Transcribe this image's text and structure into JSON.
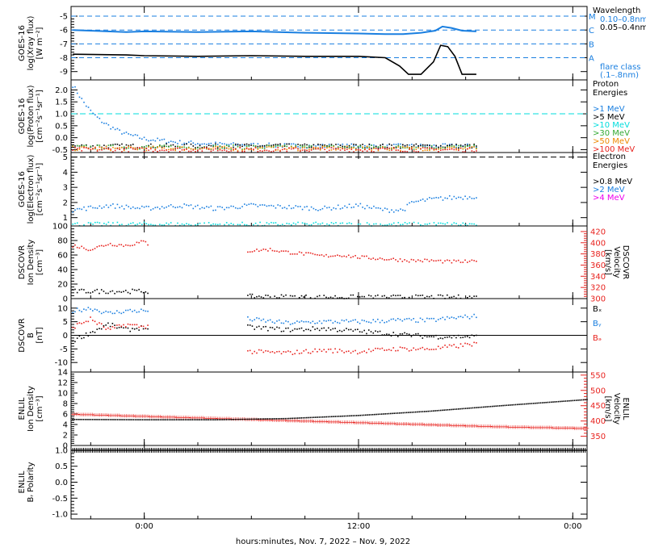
{
  "colors": {
    "black": "#000000",
    "blue": "#1a7fe0",
    "cyan": "#00dddd",
    "green": "#33aa33",
    "orange": "#ee8800",
    "red": "#e8231f",
    "magenta": "#ee00ee",
    "dash_blue": "#1a7fe0"
  },
  "xaxis": {
    "ticks": [
      "0:00",
      "12:00",
      "0:00"
    ],
    "label": "hours:minutes, Nov.  7, 2022 – Nov.  9, 2022",
    "range_hours": [
      -4.1,
      24.8
    ],
    "tick_hours": [
      0,
      12,
      24
    ],
    "data_end_hours": 18.6
  },
  "chart_data": [
    {
      "id": "xray",
      "type": "line",
      "ylabel": [
        "GOES-16",
        "log(Xray flux)",
        "[W m⁻²]"
      ],
      "ylim": [
        -9.6,
        -4.3
      ],
      "yticks": [
        "-5",
        "-6",
        "-7",
        "-8",
        "-9"
      ],
      "ytick_values": [
        -5,
        -6,
        -7,
        -8,
        -9
      ],
      "flare_levels": [
        {
          "label": "M",
          "value": -5
        },
        {
          "label": "C",
          "value": -6
        },
        {
          "label": "B",
          "value": -7
        },
        {
          "label": "A",
          "value": -8
        }
      ],
      "legend": {
        "title": "Wavelength",
        "entries": [
          {
            "label": "0.10–0.8nm",
            "color": "blue"
          },
          {
            "label": "0.05–0.4nm",
            "color": "black"
          }
        ],
        "note": [
          "flare class",
          "(.1–.8nm)"
        ]
      },
      "series": [
        {
          "color": "blue",
          "x": [
            -4,
            -1,
            0,
            3,
            6,
            9,
            12,
            13.5,
            14.5,
            15.5,
            16.3,
            16.7,
            17.2,
            17.8,
            18.6
          ],
          "y": [
            -6.0,
            -6.15,
            -6.1,
            -6.15,
            -6.1,
            -6.2,
            -6.25,
            -6.3,
            -6.3,
            -6.2,
            -6.05,
            -5.75,
            -5.85,
            -6.05,
            -6.1
          ]
        },
        {
          "color": "black",
          "x": [
            -4,
            -1,
            0,
            3,
            6,
            9,
            12,
            13.5,
            14.3,
            14.8,
            15.5,
            16.2,
            16.6,
            17.0,
            17.4,
            17.8,
            18.6
          ],
          "y": [
            -7.75,
            -7.8,
            -7.85,
            -7.9,
            -7.85,
            -7.9,
            -7.9,
            -8.0,
            -8.6,
            -9.2,
            -9.2,
            -8.3,
            -7.1,
            -7.2,
            -7.9,
            -9.2,
            -9.2
          ]
        }
      ]
    },
    {
      "id": "proton",
      "type": "scatter",
      "ylabel": [
        "GOES-16",
        "log(Proton flux)",
        "[cm⁻²s⁻¹sr⁻¹]"
      ],
      "ylim": [
        -0.62,
        2.42
      ],
      "yticks": [
        "2.0",
        "1.5",
        "1.0",
        "0.5",
        "0.0",
        "-0.5"
      ],
      "ytick_values": [
        2.0,
        1.5,
        1.0,
        0.5,
        0.0,
        -0.5
      ],
      "threshold": 1.0,
      "legend": {
        "title": [
          "Proton",
          "Energies"
        ],
        "entries": [
          {
            "label": ">1 MeV",
            "color": "blue"
          },
          {
            "label": ">5 MeV",
            "color": "black"
          },
          {
            "label": ">10 MeV",
            "color": "cyan"
          },
          {
            "label": ">30 MeV",
            "color": "green"
          },
          {
            "label": ">50 MeV",
            "color": "orange"
          },
          {
            "label": ">100 MeV",
            "color": "red"
          }
        ]
      },
      "series": [
        {
          "color": "blue",
          "x": [
            -4,
            -3.5,
            -3,
            -2.5,
            -2,
            -1.5,
            -1,
            0,
            2,
            5,
            10,
            15,
            18.6
          ],
          "y": [
            2.2,
            1.6,
            1.1,
            0.75,
            0.5,
            0.3,
            0.15,
            -0.05,
            -0.2,
            -0.3,
            -0.35,
            -0.35,
            -0.35
          ]
        },
        {
          "color": "black",
          "x": [
            -4,
            18.6
          ],
          "y": [
            -0.35,
            -0.35
          ]
        },
        {
          "color": "green",
          "x": [
            -4,
            18.6
          ],
          "y": [
            -0.4,
            -0.4
          ]
        },
        {
          "color": "orange",
          "x": [
            -4,
            18.6
          ],
          "y": [
            -0.45,
            -0.45
          ]
        },
        {
          "color": "red",
          "x": [
            -4,
            18.6
          ],
          "y": [
            -0.5,
            -0.5
          ]
        }
      ]
    },
    {
      "id": "electron",
      "type": "scatter",
      "ylabel": [
        "GOES-16",
        "log(Electron flux)",
        "[cm⁻²s⁻¹sr⁻¹]"
      ],
      "ylim": [
        0.45,
        5.3
      ],
      "yticks": [
        "5",
        "4",
        "3",
        "2",
        "1"
      ],
      "ytick_values": [
        5,
        4,
        3,
        2,
        1
      ],
      "threshold": 5.0,
      "legend": {
        "title": [
          "Electron",
          "Energies"
        ],
        "entries": [
          {
            "label": ">0.8 MeV",
            "color": "black"
          },
          {
            "label": ">2 MeV",
            "color": "blue"
          },
          {
            "label": ">4 MeV",
            "color": "magenta"
          }
        ]
      },
      "series": [
        {
          "color": "blue",
          "x": [
            -4,
            -2,
            0,
            2,
            4,
            6,
            8,
            10,
            12,
            13.5,
            14.5,
            15,
            16,
            17,
            18.6
          ],
          "y": [
            1.5,
            1.8,
            1.6,
            1.8,
            1.6,
            1.8,
            1.7,
            1.6,
            1.8,
            1.5,
            1.5,
            2.0,
            2.2,
            2.3,
            2.4
          ]
        },
        {
          "color": "cyan",
          "x": [
            -4,
            18.6
          ],
          "y": [
            0.55,
            0.55
          ]
        }
      ]
    },
    {
      "id": "dscovr_density",
      "type": "scatter",
      "ylabel": [
        "DSCOVR",
        "Ion Density",
        "[cm⁻³]"
      ],
      "ylim": [
        0,
        100
      ],
      "yticks": [
        "100",
        "80",
        "60",
        "40",
        "20",
        "0"
      ],
      "ytick_values": [
        100,
        80,
        60,
        40,
        20,
        0
      ],
      "ylabel_right": [
        "DSCOVR",
        "Velocity",
        "[km/s]"
      ],
      "ylim_right": [
        300,
        430
      ],
      "yticks_right": [
        "420",
        "400",
        "380",
        "360",
        "340",
        "320",
        "300"
      ],
      "ytick_values_right": [
        420,
        400,
        380,
        360,
        340,
        320,
        300
      ],
      "series": [
        {
          "color": "black",
          "x": [
            -4,
            -2,
            0.2
          ],
          "y": [
            10,
            10,
            10
          ]
        },
        {
          "color": "black",
          "x": [
            5.8,
            10,
            14,
            18.6
          ],
          "y": [
            3,
            2,
            2,
            2
          ]
        },
        {
          "color": "red",
          "axis": "right",
          "x": [
            -4,
            -3,
            -2,
            -1,
            0,
            0.2
          ],
          "y": [
            395,
            388,
            398,
            395,
            402,
            398
          ]
        },
        {
          "color": "red",
          "axis": "right",
          "x": [
            5.8,
            7,
            8,
            9,
            10,
            11,
            12,
            13,
            14,
            15,
            16,
            17,
            18.6
          ],
          "y": [
            385,
            388,
            383,
            380,
            376,
            378,
            374,
            372,
            370,
            368,
            368,
            366,
            366
          ]
        }
      ]
    },
    {
      "id": "dscovr_bfield",
      "type": "scatter",
      "ylabel": [
        "DSCOVR",
        "B",
        "[nT]"
      ],
      "ylim": [
        -13.5,
        13.5
      ],
      "yticks": [
        "10",
        "5",
        "0",
        "-5",
        "-10"
      ],
      "ytick_values": [
        10,
        5,
        0,
        -5,
        -10
      ],
      "legend": {
        "entries": [
          {
            "label": "Bₓ",
            "color": "black"
          },
          {
            "label": "Bᵧ",
            "color": "blue"
          },
          {
            "label": "Bₔ",
            "color": "red"
          }
        ]
      },
      "series": [
        {
          "color": "blue",
          "x": [
            -4,
            -3,
            -2,
            -1,
            0,
            0.2
          ],
          "y": [
            9,
            10,
            8,
            9,
            9,
            9
          ]
        },
        {
          "color": "blue",
          "x": [
            5.8,
            8,
            10,
            12,
            14,
            16,
            17.5,
            18.6
          ],
          "y": [
            6,
            4.5,
            5,
            5,
            5.5,
            5.5,
            6.5,
            7
          ]
        },
        {
          "color": "black",
          "x": [
            -4,
            -3,
            -2,
            -1,
            0,
            0.2
          ],
          "y": [
            -2,
            1,
            4,
            2,
            3,
            2
          ]
        },
        {
          "color": "black",
          "x": [
            5.8,
            8,
            10,
            12,
            14,
            16,
            17.5,
            18.6
          ],
          "y": [
            3,
            2,
            2.5,
            1.5,
            0.5,
            -0.5,
            -0.5,
            -0.5
          ]
        },
        {
          "color": "red",
          "x": [
            -4,
            -3,
            -2,
            -1,
            0,
            0.2
          ],
          "y": [
            3,
            6,
            2,
            4,
            3,
            4
          ]
        },
        {
          "color": "red",
          "x": [
            5.8,
            8,
            10,
            12,
            14,
            16,
            17.5,
            18.6
          ],
          "y": [
            -6,
            -6.5,
            -5.5,
            -6,
            -5,
            -5,
            -4,
            -3
          ]
        }
      ]
    },
    {
      "id": "enlil_density",
      "type": "scatter",
      "ylabel": [
        "ENLIL",
        "Ion Density",
        "[cm⁻³]"
      ],
      "ylim": [
        0,
        14
      ],
      "yticks": [
        "14",
        "12",
        "10",
        "8",
        "6",
        "4",
        "2",
        "0"
      ],
      "ytick_values": [
        14,
        12,
        10,
        8,
        6,
        4,
        2,
        0
      ],
      "ylabel_right": [
        "ENLIL",
        "Velocity",
        "[km/s]"
      ],
      "ylim_right": [
        320,
        560
      ],
      "yticks_right": [
        "550",
        "500",
        "450",
        "400",
        "350"
      ],
      "ytick_values_right": [
        550,
        500,
        450,
        400,
        350
      ],
      "series": [
        {
          "color": "red",
          "x": [
            -4,
            0,
            4,
            8,
            12,
            16,
            20,
            24.8
          ],
          "y": [
            6,
            5.6,
            5.2,
            4.8,
            4.4,
            4.0,
            3.6,
            3.3
          ]
        },
        {
          "color": "black",
          "axis": "right",
          "x": [
            -4,
            0,
            4,
            8,
            12,
            16,
            20,
            24.8
          ],
          "y": [
            405,
            404,
            404,
            408,
            418,
            432,
            450,
            470
          ]
        }
      ]
    },
    {
      "id": "enlil_polarity",
      "type": "scatter",
      "ylabel": [
        "ENLIL",
        "Bᵣ Polarity"
      ],
      "ylim": [
        -1.15,
        1.15
      ],
      "yticks": [
        "1.0",
        "0.5",
        "0.0",
        "-0.5",
        "-1.0"
      ],
      "ytick_values": [
        1.0,
        0.5,
        0.0,
        -0.5,
        -1.0
      ],
      "series": [
        {
          "color": "black",
          "x": [
            -4.1,
            24.8
          ],
          "y": [
            1,
            1
          ]
        }
      ]
    }
  ]
}
